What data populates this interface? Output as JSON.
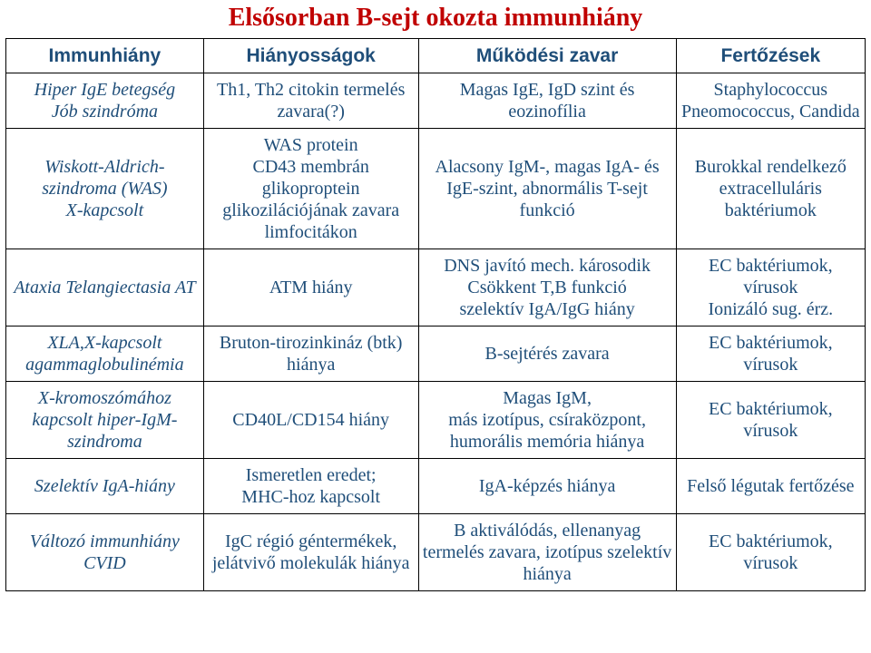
{
  "title": {
    "text": "Elsősorban B-sejt okozta immunhiány",
    "color": "#c00000",
    "fontsize": 28
  },
  "header": {
    "c1": "Immunhiány",
    "c2": "Hiányosságok",
    "c3": "Működési zavar",
    "c4": "Fertőzések",
    "color": "#1f4e79",
    "fontsize": 21
  },
  "body": {
    "fontsize": 20,
    "cell_color": "#1f4e79",
    "border_color": "#000000"
  },
  "rows": [
    {
      "c1": "Hiper IgE betegség\nJób szindróma",
      "c2": "Th1, Th2 citokin termelés zavara(?)",
      "c3": "Magas IgE, IgD szint és eozinofília",
      "c4": "Staphylococcus Pneomococcus, Candida"
    },
    {
      "c1": "Wiskott-Aldrich-szindroma (WAS)\nX-kapcsolt",
      "c2": "WAS protein\nCD43 membrán glikoproptein glikozilációjának zavara limfocitákon",
      "c3": "Alacsony IgM-, magas IgA- és IgE-szint, abnormális T-sejt funkció",
      "c4": "Burokkal rendelkező extracelluláris baktériumok"
    },
    {
      "c1": "Ataxia Telangiectasia AT",
      "c2": "ATM hiány",
      "c3": "DNS javító mech. károsodik\nCsökkent T,B funkció\nszelektív IgA/IgG hiány",
      "c4": "EC baktériumok, vírusok\nIonizáló sug. érz."
    },
    {
      "c1": "XLA,X-kapcsolt agammaglobulinémia",
      "c2": "Bruton-tirozinkináz (btk) hiánya",
      "c3": "B-sejtérés zavara",
      "c4": "EC baktériumok, vírusok"
    },
    {
      "c1": "X-kromoszómához kapcsolt hiper-IgM-szindroma",
      "c2": "CD40L/CD154 hiány",
      "c3": "Magas IgM,\nmás izotípus, csíraközpont, humorális memória hiánya",
      "c4": "EC baktériumok, vírusok"
    },
    {
      "c1": "Szelektív IgA-hiány",
      "c2": "Ismeretlen eredet;\nMHC-hoz kapcsolt",
      "c3": "IgA-képzés hiánya",
      "c4": "Felső légutak fertőzése"
    },
    {
      "c1": "Változó immunhiány CVID",
      "c2": "IgC régió géntermékek, jelátvivő molekulák hiánya",
      "c3": "B aktiválódás, ellenanyag termelés zavara, izotípus szelektív hiánya",
      "c4": "EC baktériumok, vírusok"
    }
  ]
}
